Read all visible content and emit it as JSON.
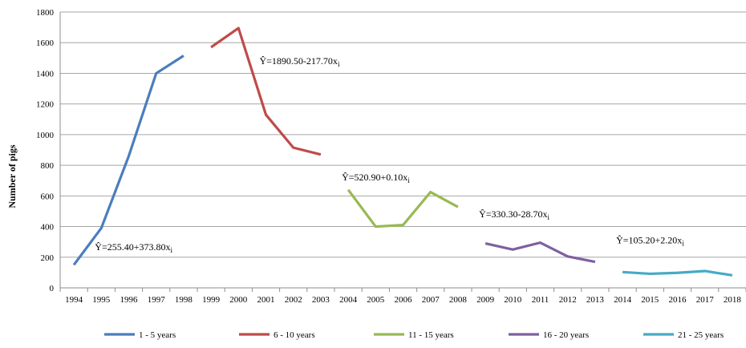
{
  "chart_data": {
    "type": "line",
    "title": "",
    "xlabel": "",
    "ylabel": "Number of pigs",
    "ylim": [
      0,
      1800
    ],
    "yticks": [
      0,
      200,
      400,
      600,
      800,
      1000,
      1200,
      1400,
      1600,
      1800
    ],
    "grid": true,
    "legend": "bottom",
    "categories": [
      "1994",
      "1995",
      "1996",
      "1997",
      "1998",
      "1999",
      "2000",
      "2001",
      "2002",
      "2003",
      "2004",
      "2005",
      "2006",
      "2007",
      "2008",
      "2009",
      "2010",
      "2011",
      "2012",
      "2013",
      "2014",
      "2015",
      "2016",
      "2017",
      "2018"
    ],
    "series": [
      {
        "name": "1 - 5 years",
        "color": "#4a7ebb",
        "x": [
          "1994",
          "1995",
          "1996",
          "1997",
          "1998"
        ],
        "values": [
          150,
          390,
          860,
          1400,
          1515
        ]
      },
      {
        "name": "6 - 10 years",
        "color": "#be4b48",
        "x": [
          "1999",
          "2000",
          "2001",
          "2002",
          "2003"
        ],
        "values": [
          1570,
          1695,
          1130,
          915,
          870
        ]
      },
      {
        "name": "11 - 15 years",
        "color": "#98b954",
        "x": [
          "2004",
          "2005",
          "2006",
          "2007",
          "2008"
        ],
        "values": [
          640,
          400,
          410,
          625,
          528
        ]
      },
      {
        "name": "16 - 20 years",
        "color": "#7d60a0",
        "x": [
          "2009",
          "2010",
          "2011",
          "2012",
          "2013"
        ],
        "values": [
          290,
          250,
          295,
          205,
          170
        ]
      },
      {
        "name": "21 - 25 years",
        "color": "#46aac5",
        "x": [
          "2014",
          "2015",
          "2016",
          "2017",
          "2018"
        ],
        "values": [
          103,
          92,
          98,
          110,
          82
        ]
      }
    ],
    "annotations": [
      {
        "text": "Ŷ=255.40+373.80x",
        "sub": "i",
        "x": "1995",
        "y": 245
      },
      {
        "text": "Ŷ=1890.50-217.70x",
        "sub": "i",
        "x": "2001",
        "y": 1460
      },
      {
        "text": "Ŷ=520.90+0.10x",
        "sub": "i",
        "x": "2004",
        "y": 700
      },
      {
        "text": "Ŷ=330.30-28.70x",
        "sub": "i",
        "x": "2009",
        "y": 460
      },
      {
        "text": "Ŷ=105.20+2.20x",
        "sub": "i",
        "x": "2014",
        "y": 290
      }
    ]
  }
}
